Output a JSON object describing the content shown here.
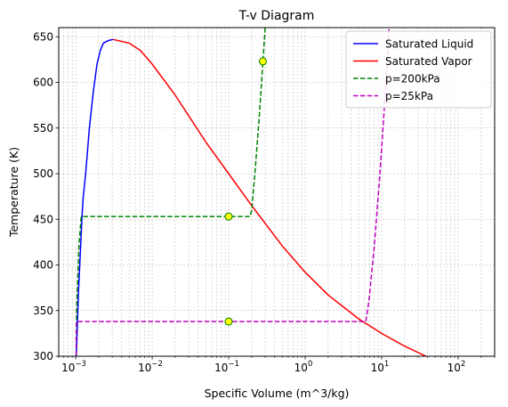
{
  "chart_data": {
    "type": "line",
    "title": "T-v Diagram",
    "xlabel": "Specific Volume (m^3/kg)",
    "ylabel": "Temperature (K)",
    "xscale": "log",
    "xlim": [
      0.0006,
      300
    ],
    "ylim": [
      300,
      660
    ],
    "x_ticks": [
      0.001,
      0.01,
      0.1,
      1,
      10,
      100
    ],
    "x_tick_labels": [
      {
        "base": "10",
        "exp": "−3"
      },
      {
        "base": "10",
        "exp": "−2"
      },
      {
        "base": "10",
        "exp": "−1"
      },
      {
        "base": "10",
        "exp": "0"
      },
      {
        "base": "10",
        "exp": "1"
      },
      {
        "base": "10",
        "exp": "2"
      }
    ],
    "y_ticks": [
      300,
      350,
      400,
      450,
      500,
      550,
      600,
      650
    ],
    "y_tick_labels": [
      "300",
      "350",
      "400",
      "450",
      "500",
      "550",
      "600",
      "650"
    ],
    "grid": true,
    "legend_position": "top-right",
    "series": [
      {
        "name": "Saturated Liquid",
        "color": "#0000ff",
        "style": "solid",
        "points": [
          [
            0.001,
            273
          ],
          [
            0.00102,
            300
          ],
          [
            0.00109,
            373
          ],
          [
            0.00116,
            420
          ],
          [
            0.00121,
            453
          ],
          [
            0.00125,
            473
          ],
          [
            0.00135,
            500
          ],
          [
            0.00151,
            550
          ],
          [
            0.0017,
            590
          ],
          [
            0.0019,
            620
          ],
          [
            0.0021,
            635
          ],
          [
            0.0023,
            643
          ],
          [
            0.0027,
            646
          ],
          [
            0.0031,
            647
          ]
        ]
      },
      {
        "name": "Saturated Vapor",
        "color": "#ff0000",
        "style": "solid",
        "points": [
          [
            0.0031,
            647
          ],
          [
            0.0035,
            646
          ],
          [
            0.005,
            643
          ],
          [
            0.007,
            635
          ],
          [
            0.01,
            620
          ],
          [
            0.02,
            586
          ],
          [
            0.05,
            535
          ],
          [
            0.1,
            500
          ],
          [
            0.2,
            465
          ],
          [
            0.5,
            421
          ],
          [
            1.0,
            392
          ],
          [
            2.0,
            367
          ],
          [
            5.0,
            341
          ],
          [
            10.0,
            325
          ],
          [
            20.0,
            311
          ],
          [
            45.0,
            297
          ]
        ]
      },
      {
        "name": "p=200kPa",
        "color": "#008000",
        "style": "dashed",
        "points": [
          [
            0.00101,
            278
          ],
          [
            0.00103,
            350
          ],
          [
            0.0011,
            420
          ],
          [
            0.00118,
            453
          ],
          [
            0.19,
            453
          ],
          [
            0.2,
            460
          ],
          [
            0.22,
            500
          ],
          [
            0.25,
            560
          ],
          [
            0.28,
            622
          ],
          [
            0.3,
            660
          ]
        ]
      },
      {
        "name": "p=25kPa",
        "color": "#bf00bf",
        "style": "dashed",
        "points": [
          [
            0.00101,
            278
          ],
          [
            0.00102,
            338
          ],
          [
            6.2,
            338
          ],
          [
            6.8,
            360
          ],
          [
            8.0,
            420
          ],
          [
            9.5,
            500
          ],
          [
            11.0,
            580
          ],
          [
            12.5,
            660
          ]
        ]
      }
    ],
    "markers": [
      {
        "x": 0.1,
        "y": 453,
        "color": "#ffff00",
        "edge": "#008000"
      },
      {
        "x": 0.28,
        "y": 623,
        "color": "#ffff00",
        "edge": "#008000"
      },
      {
        "x": 0.1,
        "y": 338,
        "color": "#ffff00",
        "edge": "#008000"
      }
    ]
  }
}
